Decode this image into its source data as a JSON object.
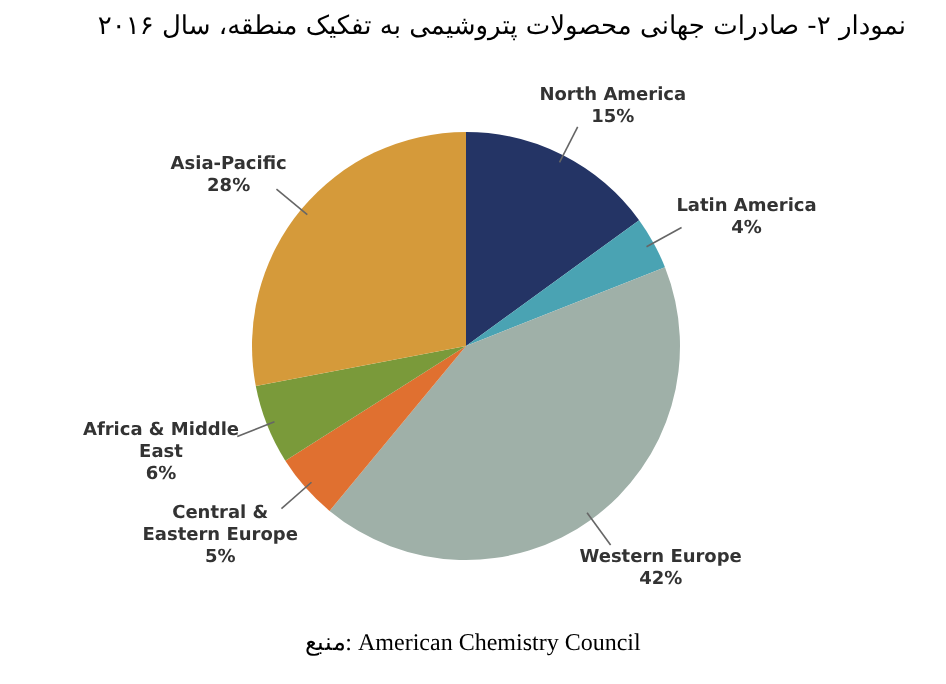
{
  "chart_data": {
    "type": "pie",
    "title": "نمودار ۲- صادرات جهانی محصولات پتروشیمی به تفکیک منطقه، سال ۲۰۱۶",
    "categories": [
      "North America",
      "Latin America",
      "Western Europe",
      "Central & Eastern Europe",
      "Africa & Middle East",
      "Asia-Pacific"
    ],
    "values": [
      15,
      4,
      42,
      5,
      6,
      28
    ],
    "value_labels": [
      "15%",
      "4%",
      "42%",
      "5%",
      "6%",
      "28%"
    ],
    "colors": [
      "#243465",
      "#4aa3b3",
      "#9fb0a8",
      "#e07030",
      "#7a9a3a",
      "#d59a3a"
    ],
    "legend": false,
    "annotations": [
      "منبع: American Chemistry Council"
    ]
  }
}
